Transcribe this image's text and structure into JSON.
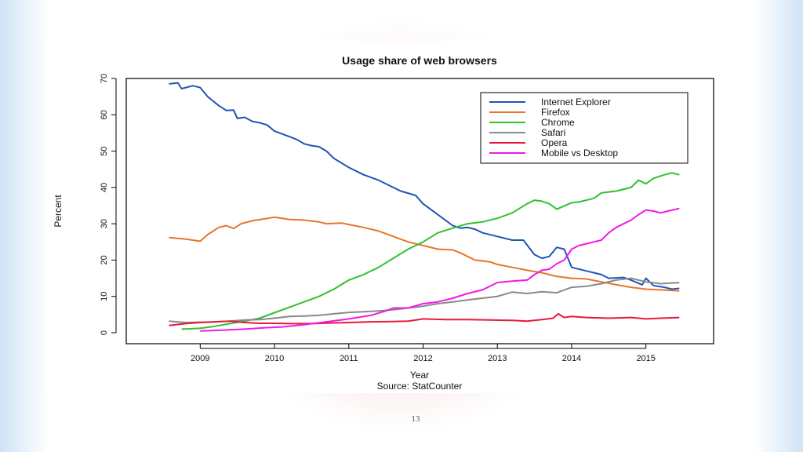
{
  "slide": {
    "page_number": "13"
  },
  "chart_data": {
    "type": "line",
    "title": "Usage share of web browsers",
    "xlabel": "Year",
    "source": "Source: StatCounter",
    "ylabel": "Percent",
    "xlim": [
      2008.3,
      2015.7
    ],
    "ylim": [
      0,
      70
    ],
    "x_ticks": [
      2009,
      2010,
      2011,
      2012,
      2013,
      2014,
      2015
    ],
    "y_ticks": [
      0,
      10,
      20,
      30,
      40,
      50,
      60,
      70
    ],
    "grid": false,
    "legend_position": "top-right",
    "series": [
      {
        "name": "Internet Explorer",
        "color": "#1f55b5",
        "points": [
          [
            2008.58,
            68.5
          ],
          [
            2008.7,
            68.8
          ],
          [
            2008.75,
            67.2
          ],
          [
            2008.9,
            68
          ],
          [
            2009,
            67.5
          ],
          [
            2009.1,
            65
          ],
          [
            2009.25,
            62.5
          ],
          [
            2009.35,
            61.2
          ],
          [
            2009.45,
            61.3
          ],
          [
            2009.5,
            59
          ],
          [
            2009.6,
            59.3
          ],
          [
            2009.7,
            58.2
          ],
          [
            2009.8,
            57.8
          ],
          [
            2009.9,
            57.2
          ],
          [
            2010,
            55.5
          ],
          [
            2010.2,
            54
          ],
          [
            2010.3,
            53.2
          ],
          [
            2010.4,
            52
          ],
          [
            2010.5,
            51.5
          ],
          [
            2010.6,
            51.2
          ],
          [
            2010.7,
            50
          ],
          [
            2010.8,
            48
          ],
          [
            2011,
            45.5
          ],
          [
            2011.2,
            43.5
          ],
          [
            2011.4,
            42
          ],
          [
            2011.6,
            40
          ],
          [
            2011.7,
            39
          ],
          [
            2011.9,
            37.8
          ],
          [
            2012,
            35.5
          ],
          [
            2012.2,
            32.5
          ],
          [
            2012.4,
            29.5
          ],
          [
            2012.5,
            28.8
          ],
          [
            2012.6,
            29
          ],
          [
            2012.7,
            28.5
          ],
          [
            2012.8,
            27.5
          ],
          [
            2013,
            26.5
          ],
          [
            2013.2,
            25.5
          ],
          [
            2013.35,
            25.5
          ],
          [
            2013.5,
            21.5
          ],
          [
            2013.6,
            20.5
          ],
          [
            2013.7,
            21
          ],
          [
            2013.8,
            23.5
          ],
          [
            2013.9,
            23
          ],
          [
            2014,
            18
          ],
          [
            2014.2,
            17
          ],
          [
            2014.4,
            16
          ],
          [
            2014.5,
            15
          ],
          [
            2014.7,
            15.2
          ],
          [
            2014.8,
            14.5
          ],
          [
            2014.95,
            13.2
          ],
          [
            2015,
            15
          ],
          [
            2015.1,
            13
          ],
          [
            2015.25,
            12.5
          ],
          [
            2015.35,
            12
          ],
          [
            2015.45,
            12.2
          ]
        ]
      },
      {
        "name": "Firefox",
        "color": "#e8752a",
        "points": [
          [
            2008.58,
            26.2
          ],
          [
            2008.8,
            25.8
          ],
          [
            2009,
            25.2
          ],
          [
            2009.1,
            27
          ],
          [
            2009.25,
            29
          ],
          [
            2009.35,
            29.5
          ],
          [
            2009.45,
            28.7
          ],
          [
            2009.55,
            30
          ],
          [
            2009.7,
            30.8
          ],
          [
            2009.85,
            31.3
          ],
          [
            2010,
            31.8
          ],
          [
            2010.2,
            31.2
          ],
          [
            2010.4,
            31
          ],
          [
            2010.6,
            30.5
          ],
          [
            2010.7,
            30
          ],
          [
            2010.9,
            30.2
          ],
          [
            2011,
            29.8
          ],
          [
            2011.2,
            29
          ],
          [
            2011.4,
            28
          ],
          [
            2011.6,
            26.5
          ],
          [
            2011.8,
            25
          ],
          [
            2012,
            24
          ],
          [
            2012.2,
            23
          ],
          [
            2012.4,
            22.8
          ],
          [
            2012.5,
            22
          ],
          [
            2012.6,
            21
          ],
          [
            2012.7,
            20
          ],
          [
            2012.9,
            19.5
          ],
          [
            2013,
            18.8
          ],
          [
            2013.2,
            18
          ],
          [
            2013.4,
            17.2
          ],
          [
            2013.6,
            16.5
          ],
          [
            2013.8,
            15.5
          ],
          [
            2014,
            15
          ],
          [
            2014.2,
            14.8
          ],
          [
            2014.4,
            14
          ],
          [
            2014.6,
            13.2
          ],
          [
            2014.8,
            12.5
          ],
          [
            2015,
            12
          ],
          [
            2015.2,
            11.8
          ],
          [
            2015.45,
            11.5
          ]
        ]
      },
      {
        "name": "Chrome",
        "color": "#2fc22f",
        "points": [
          [
            2008.75,
            1
          ],
          [
            2009,
            1.2
          ],
          [
            2009.2,
            1.8
          ],
          [
            2009.4,
            2.5
          ],
          [
            2009.6,
            3.2
          ],
          [
            2009.8,
            4
          ],
          [
            2010,
            5.5
          ],
          [
            2010.2,
            7
          ],
          [
            2010.4,
            8.5
          ],
          [
            2010.6,
            10
          ],
          [
            2010.8,
            12
          ],
          [
            2011,
            14.5
          ],
          [
            2011.2,
            16
          ],
          [
            2011.4,
            18
          ],
          [
            2011.6,
            20.5
          ],
          [
            2011.8,
            23
          ],
          [
            2012,
            25
          ],
          [
            2012.2,
            27.5
          ],
          [
            2012.4,
            28.8
          ],
          [
            2012.6,
            30
          ],
          [
            2012.8,
            30.5
          ],
          [
            2013,
            31.5
          ],
          [
            2013.2,
            33
          ],
          [
            2013.4,
            35.5
          ],
          [
            2013.5,
            36.5
          ],
          [
            2013.6,
            36.2
          ],
          [
            2013.7,
            35.5
          ],
          [
            2013.8,
            34
          ],
          [
            2014,
            35.8
          ],
          [
            2014.1,
            36
          ],
          [
            2014.3,
            37
          ],
          [
            2014.4,
            38.5
          ],
          [
            2014.6,
            39
          ],
          [
            2014.8,
            40
          ],
          [
            2014.9,
            42
          ],
          [
            2015,
            41
          ],
          [
            2015.1,
            42.5
          ],
          [
            2015.25,
            43.5
          ],
          [
            2015.35,
            44
          ],
          [
            2015.45,
            43.5
          ]
        ]
      },
      {
        "name": "Safari",
        "color": "#8a8a8a",
        "points": [
          [
            2008.58,
            3.2
          ],
          [
            2008.8,
            2.8
          ],
          [
            2009,
            2.9
          ],
          [
            2009.2,
            3
          ],
          [
            2009.4,
            3.2
          ],
          [
            2009.6,
            3.5
          ],
          [
            2009.8,
            3.6
          ],
          [
            2010,
            4
          ],
          [
            2010.2,
            4.5
          ],
          [
            2010.4,
            4.6
          ],
          [
            2010.6,
            4.8
          ],
          [
            2010.8,
            5.2
          ],
          [
            2011,
            5.6
          ],
          [
            2011.2,
            5.8
          ],
          [
            2011.4,
            6
          ],
          [
            2011.6,
            6.3
          ],
          [
            2011.8,
            6.8
          ],
          [
            2012,
            7.3
          ],
          [
            2012.2,
            8
          ],
          [
            2012.4,
            8.5
          ],
          [
            2012.6,
            9
          ],
          [
            2012.8,
            9.5
          ],
          [
            2013,
            10
          ],
          [
            2013.2,
            11.2
          ],
          [
            2013.4,
            10.8
          ],
          [
            2013.6,
            11.3
          ],
          [
            2013.8,
            11
          ],
          [
            2014,
            12.5
          ],
          [
            2014.2,
            12.8
          ],
          [
            2014.4,
            13.5
          ],
          [
            2014.6,
            14.5
          ],
          [
            2014.8,
            15
          ],
          [
            2015,
            14
          ],
          [
            2015.2,
            13.5
          ],
          [
            2015.45,
            13.8
          ]
        ]
      },
      {
        "name": "Opera",
        "color": "#e8193a",
        "points": [
          [
            2008.58,
            2
          ],
          [
            2008.8,
            2.5
          ],
          [
            2009,
            2.8
          ],
          [
            2009.2,
            3
          ],
          [
            2009.4,
            3.2
          ],
          [
            2009.6,
            2.8
          ],
          [
            2009.8,
            2.6
          ],
          [
            2010,
            2.6
          ],
          [
            2010.2,
            2.5
          ],
          [
            2010.5,
            2.5
          ],
          [
            2010.8,
            2.7
          ],
          [
            2011,
            2.8
          ],
          [
            2011.3,
            3
          ],
          [
            2011.6,
            3.1
          ],
          [
            2011.8,
            3.2
          ],
          [
            2012,
            3.8
          ],
          [
            2012.3,
            3.6
          ],
          [
            2012.6,
            3.6
          ],
          [
            2012.9,
            3.5
          ],
          [
            2013.2,
            3.4
          ],
          [
            2013.4,
            3.2
          ],
          [
            2013.6,
            3.6
          ],
          [
            2013.75,
            4
          ],
          [
            2013.82,
            5.2
          ],
          [
            2013.9,
            4.2
          ],
          [
            2014,
            4.5
          ],
          [
            2014.2,
            4.2
          ],
          [
            2014.5,
            4
          ],
          [
            2014.8,
            4.2
          ],
          [
            2015,
            3.8
          ],
          [
            2015.2,
            4
          ],
          [
            2015.45,
            4.2
          ]
        ]
      },
      {
        "name": "Mobile vs Desktop",
        "color": "#ef19e8",
        "points": [
          [
            2009,
            0.5
          ],
          [
            2009.3,
            0.7
          ],
          [
            2009.6,
            1
          ],
          [
            2009.9,
            1.4
          ],
          [
            2010.1,
            1.6
          ],
          [
            2010.4,
            2.2
          ],
          [
            2010.7,
            3
          ],
          [
            2011,
            3.8
          ],
          [
            2011.3,
            4.8
          ],
          [
            2011.5,
            6
          ],
          [
            2011.6,
            6.8
          ],
          [
            2011.8,
            6.8
          ],
          [
            2012,
            8
          ],
          [
            2012.2,
            8.5
          ],
          [
            2012.4,
            9.5
          ],
          [
            2012.6,
            10.8
          ],
          [
            2012.8,
            11.8
          ],
          [
            2013,
            13.8
          ],
          [
            2013.2,
            14.2
          ],
          [
            2013.4,
            14.5
          ],
          [
            2013.5,
            16
          ],
          [
            2013.6,
            17.2
          ],
          [
            2013.7,
            17.5
          ],
          [
            2013.8,
            19
          ],
          [
            2013.9,
            20
          ],
          [
            2014,
            23
          ],
          [
            2014.1,
            24
          ],
          [
            2014.3,
            25
          ],
          [
            2014.4,
            25.5
          ],
          [
            2014.5,
            27.5
          ],
          [
            2014.6,
            29
          ],
          [
            2014.8,
            31
          ],
          [
            2014.9,
            32.5
          ],
          [
            2015,
            33.8
          ],
          [
            2015.1,
            33.5
          ],
          [
            2015.2,
            33
          ],
          [
            2015.3,
            33.5
          ],
          [
            2015.45,
            34.2
          ]
        ]
      }
    ]
  }
}
